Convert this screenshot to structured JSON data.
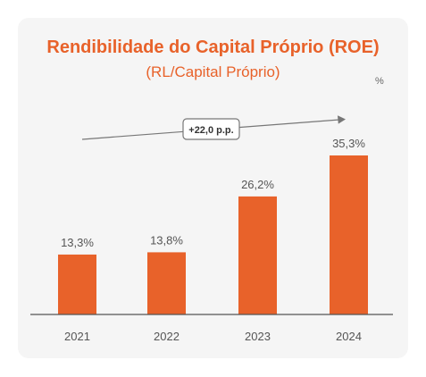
{
  "colors": {
    "accent": "#e8622a",
    "axis": "#555555",
    "label": "#555555",
    "trend": "#777777"
  },
  "chart_data": {
    "type": "bar",
    "title": "Rendibilidade do Capital Próprio (ROE)",
    "subtitle": "(RL/Capital Próprio)",
    "unit": "%",
    "categories": [
      "2021",
      "2022",
      "2023",
      "2024"
    ],
    "values": [
      13.3,
      13.8,
      26.2,
      35.3
    ],
    "value_labels": [
      "13,3%",
      "13,8%",
      "26,2%",
      "35,3%"
    ],
    "ylim": [
      0,
      35.3
    ],
    "grid": false,
    "annotation": {
      "text": "+22,0 p.p.",
      "type": "trend-arrow"
    }
  }
}
